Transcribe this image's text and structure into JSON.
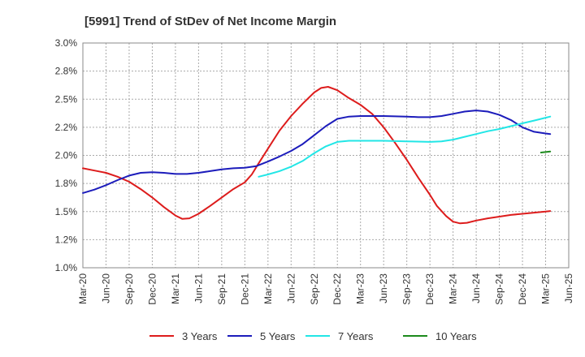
{
  "chart_data": {
    "type": "line",
    "title": "[5991]  Trend of StDev of Net Income Margin",
    "xlabel": "",
    "ylabel": "",
    "x": [
      "Mar-20",
      "Jun-20",
      "Sep-20",
      "Dec-20",
      "Mar-21",
      "Jun-21",
      "Sep-21",
      "Dec-21",
      "Mar-22",
      "Jun-22",
      "Sep-22",
      "Dec-22",
      "Mar-23",
      "Jun-23",
      "Sep-23",
      "Dec-23",
      "Mar-24",
      "Jun-24",
      "Sep-24",
      "Dec-24",
      "Mar-25",
      "Jun-25"
    ],
    "y_ticks": [
      "1.0%",
      "1.2%",
      "1.5%",
      "1.8%",
      "2.0%",
      "2.2%",
      "2.5%",
      "2.8%",
      "3.0%"
    ],
    "ylim": [
      1.0,
      3.0
    ],
    "grid": true,
    "legend_position": "bottom",
    "series": [
      {
        "name": "3 Years",
        "color": "#dd1c1c",
        "points": [
          [
            0,
            1.885
          ],
          [
            0.5,
            1.865
          ],
          [
            1,
            1.845
          ],
          [
            1.5,
            1.81
          ],
          [
            2,
            1.765
          ],
          [
            2.5,
            1.7
          ],
          [
            3,
            1.625
          ],
          [
            3.5,
            1.54
          ],
          [
            4,
            1.465
          ],
          [
            4.3,
            1.435
          ],
          [
            4.6,
            1.44
          ],
          [
            5,
            1.48
          ],
          [
            5.5,
            1.55
          ],
          [
            6,
            1.625
          ],
          [
            6.5,
            1.7
          ],
          [
            7,
            1.76
          ],
          [
            7.3,
            1.83
          ],
          [
            7.6,
            1.93
          ],
          [
            8,
            2.06
          ],
          [
            8.5,
            2.22
          ],
          [
            9,
            2.35
          ],
          [
            9.5,
            2.46
          ],
          [
            10,
            2.56
          ],
          [
            10.3,
            2.6
          ],
          [
            10.6,
            2.61
          ],
          [
            11,
            2.58
          ],
          [
            11.5,
            2.51
          ],
          [
            12,
            2.45
          ],
          [
            12.5,
            2.37
          ],
          [
            13,
            2.25
          ],
          [
            13.5,
            2.11
          ],
          [
            14,
            1.96
          ],
          [
            14.5,
            1.8
          ],
          [
            15,
            1.65
          ],
          [
            15.3,
            1.55
          ],
          [
            15.7,
            1.46
          ],
          [
            16,
            1.41
          ],
          [
            16.3,
            1.395
          ],
          [
            16.6,
            1.4
          ],
          [
            17,
            1.42
          ],
          [
            17.5,
            1.44
          ],
          [
            18,
            1.455
          ],
          [
            18.5,
            1.47
          ],
          [
            19,
            1.48
          ],
          [
            19.5,
            1.49
          ],
          [
            20,
            1.5
          ],
          [
            20.2,
            1.505
          ]
        ]
      },
      {
        "name": "5 Years",
        "color": "#1c1cbb",
        "points": [
          [
            0,
            1.665
          ],
          [
            0.5,
            1.695
          ],
          [
            1,
            1.735
          ],
          [
            1.5,
            1.78
          ],
          [
            2,
            1.82
          ],
          [
            2.5,
            1.845
          ],
          [
            3,
            1.85
          ],
          [
            3.5,
            1.845
          ],
          [
            4,
            1.835
          ],
          [
            4.5,
            1.835
          ],
          [
            5,
            1.845
          ],
          [
            5.5,
            1.86
          ],
          [
            6,
            1.875
          ],
          [
            6.5,
            1.885
          ],
          [
            7,
            1.89
          ],
          [
            7.5,
            1.905
          ],
          [
            8,
            1.945
          ],
          [
            8.5,
            1.99
          ],
          [
            9,
            2.04
          ],
          [
            9.5,
            2.1
          ],
          [
            10,
            2.18
          ],
          [
            10.5,
            2.26
          ],
          [
            11,
            2.325
          ],
          [
            11.5,
            2.345
          ],
          [
            12,
            2.35
          ],
          [
            13,
            2.35
          ],
          [
            14,
            2.345
          ],
          [
            14.5,
            2.34
          ],
          [
            15,
            2.34
          ],
          [
            15.5,
            2.35
          ],
          [
            16,
            2.37
          ],
          [
            16.5,
            2.39
          ],
          [
            17,
            2.4
          ],
          [
            17.5,
            2.39
          ],
          [
            18,
            2.36
          ],
          [
            18.5,
            2.315
          ],
          [
            19,
            2.25
          ],
          [
            19.5,
            2.21
          ],
          [
            20,
            2.195
          ],
          [
            20.2,
            2.19
          ]
        ]
      },
      {
        "name": "7 Years",
        "color": "#22e6e6",
        "points": [
          [
            7.6,
            1.81
          ],
          [
            8,
            1.83
          ],
          [
            8.5,
            1.86
          ],
          [
            9,
            1.9
          ],
          [
            9.5,
            1.95
          ],
          [
            10,
            2.02
          ],
          [
            10.5,
            2.08
          ],
          [
            11,
            2.12
          ],
          [
            11.5,
            2.13
          ],
          [
            12,
            2.13
          ],
          [
            13,
            2.13
          ],
          [
            14,
            2.125
          ],
          [
            15,
            2.12
          ],
          [
            15.5,
            2.125
          ],
          [
            16,
            2.14
          ],
          [
            16.5,
            2.165
          ],
          [
            17,
            2.19
          ],
          [
            17.5,
            2.215
          ],
          [
            18,
            2.235
          ],
          [
            18.5,
            2.26
          ],
          [
            19,
            2.285
          ],
          [
            19.5,
            2.31
          ],
          [
            20,
            2.335
          ],
          [
            20.2,
            2.345
          ]
        ]
      },
      {
        "name": "10 Years",
        "color": "#1c8a1c",
        "points": [
          [
            19.8,
            2.025
          ],
          [
            20.2,
            2.035
          ]
        ]
      }
    ]
  }
}
